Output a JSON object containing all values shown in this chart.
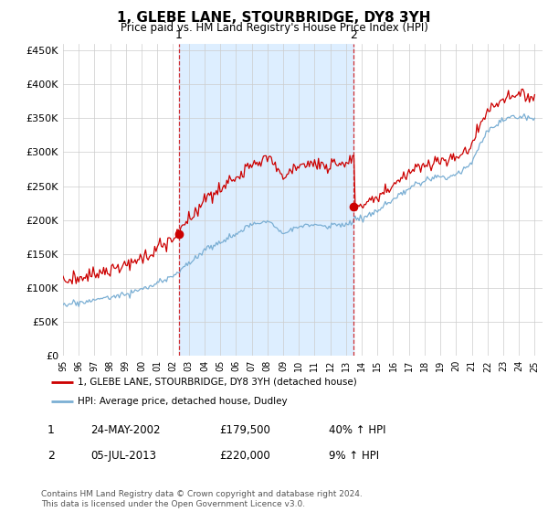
{
  "title": "1, GLEBE LANE, STOURBRIDGE, DY8 3YH",
  "subtitle": "Price paid vs. HM Land Registry's House Price Index (HPI)",
  "ylim": [
    0,
    460000
  ],
  "yticks": [
    0,
    50000,
    100000,
    150000,
    200000,
    250000,
    300000,
    350000,
    400000,
    450000
  ],
  "ytick_labels": [
    "£0",
    "£50K",
    "£100K",
    "£150K",
    "£200K",
    "£250K",
    "£300K",
    "£350K",
    "£400K",
    "£450K"
  ],
  "hpi_color": "#7bafd4",
  "price_color": "#cc0000",
  "shade_color": "#ddeeff",
  "marker1_x": 2002.38,
  "marker2_x": 2013.5,
  "marker1_price": 179500,
  "marker2_price": 220000,
  "legend_label_price": "1, GLEBE LANE, STOURBRIDGE, DY8 3YH (detached house)",
  "legend_label_hpi": "HPI: Average price, detached house, Dudley",
  "table_rows": [
    {
      "num": "1",
      "date": "24-MAY-2002",
      "price": "£179,500",
      "change": "40% ↑ HPI"
    },
    {
      "num": "2",
      "date": "05-JUL-2013",
      "price": "£220,000",
      "change": "9% ↑ HPI"
    }
  ],
  "footer": "Contains HM Land Registry data © Crown copyright and database right 2024.\nThis data is licensed under the Open Government Licence v3.0.",
  "background_color": "#ffffff",
  "xlim_left": 1995.0,
  "xlim_right": 2025.5
}
